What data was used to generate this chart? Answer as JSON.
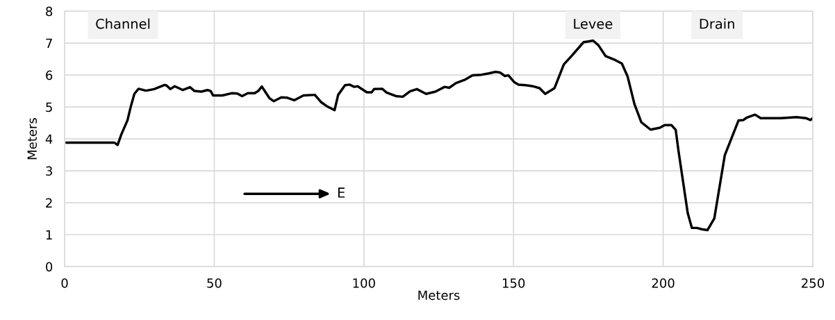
{
  "chart_data": {
    "type": "line",
    "xlabel": "Meters",
    "ylabel": "Meters",
    "xlim": [
      0,
      250
    ],
    "xticks": [
      0,
      50,
      100,
      150,
      200,
      250
    ],
    "ylim": [
      0,
      8
    ],
    "yticks": [
      0,
      1,
      2,
      3,
      4,
      5,
      6,
      7,
      8
    ],
    "grid": true,
    "legend": false,
    "marker": "none",
    "line_style": "solid",
    "annotations": [
      "Channel",
      "Levee",
      "Drain",
      "E"
    ],
    "series": [
      {
        "color": "#000000",
        "x": [
          0.7,
          16.7,
          17.7,
          19.0,
          21.0,
          22.1,
          23.3,
          24.7,
          27.2,
          29.9,
          31.8,
          33.4,
          34.1,
          35.3,
          36.8,
          39.5,
          41.9,
          43.4,
          45.7,
          47.7,
          48.8,
          49.6,
          52.7,
          55.8,
          57.7,
          59.3,
          61.2,
          63.5,
          64.7,
          65.9,
          67.0,
          68.5,
          69.9,
          72.4,
          74.4,
          76.7,
          79.8,
          83.6,
          85.6,
          87.5,
          90.2,
          91.4,
          93.7,
          95.2,
          96.8,
          97.9,
          101.0,
          102.6,
          103.4,
          106.1,
          107.6,
          110.7,
          113.0,
          115.4,
          117.7,
          120.8,
          123.9,
          127.0,
          128.5,
          130.8,
          133.9,
          136.3,
          139.3,
          141.7,
          144.0,
          145.5,
          147.1,
          148.3,
          150.2,
          151.7,
          154.1,
          156.4,
          158.7,
          160.6,
          163.7,
          166.8,
          169.5,
          173.4,
          174.9,
          176.6,
          178.4,
          180.8,
          183.5,
          186.2,
          188.1,
          190.4,
          192.7,
          195.8,
          198.9,
          200.5,
          202.8,
          204.2,
          205.1,
          208.2,
          209.6,
          211.3,
          212.9,
          214.8,
          217.1,
          220.6,
          225.2,
          226.8,
          228.0,
          230.7,
          232.6,
          239.2,
          244.6,
          247.7,
          249.2,
          250
        ],
        "values": [
          3.88,
          3.88,
          3.81,
          4.15,
          4.58,
          5.01,
          5.41,
          5.57,
          5.51,
          5.56,
          5.63,
          5.69,
          5.67,
          5.56,
          5.65,
          5.53,
          5.62,
          5.5,
          5.48,
          5.53,
          5.5,
          5.36,
          5.36,
          5.43,
          5.42,
          5.34,
          5.43,
          5.43,
          5.5,
          5.64,
          5.48,
          5.27,
          5.18,
          5.3,
          5.29,
          5.21,
          5.36,
          5.38,
          5.16,
          5.03,
          4.9,
          5.38,
          5.68,
          5.7,
          5.63,
          5.65,
          5.46,
          5.46,
          5.56,
          5.57,
          5.45,
          5.34,
          5.32,
          5.49,
          5.56,
          5.41,
          5.48,
          5.63,
          5.6,
          5.75,
          5.86,
          5.99,
          6.01,
          6.05,
          6.1,
          6.08,
          5.97,
          5.99,
          5.78,
          5.7,
          5.68,
          5.65,
          5.59,
          5.41,
          5.59,
          6.33,
          6.61,
          7.03,
          7.05,
          7.08,
          6.93,
          6.59,
          6.49,
          6.36,
          5.96,
          5.09,
          4.52,
          4.29,
          4.35,
          4.43,
          4.43,
          4.28,
          3.64,
          1.68,
          1.21,
          1.21,
          1.17,
          1.14,
          1.51,
          3.49,
          4.58,
          4.59,
          4.67,
          4.76,
          4.65,
          4.65,
          4.68,
          4.65,
          4.59,
          4.65
        ]
      }
    ]
  }
}
